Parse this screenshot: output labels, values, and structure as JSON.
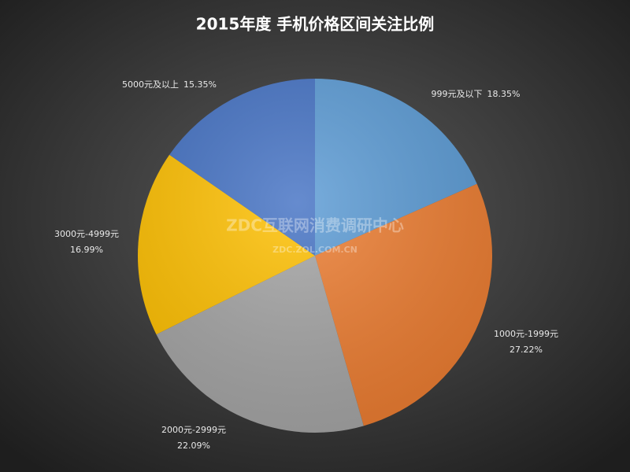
{
  "chart_data": {
    "type": "pie",
    "title": "2015年度 手机价格区间关注比例",
    "categories": [
      "999元及以下",
      "1000元-1999元",
      "2000元-2999元",
      "3000元-4999元",
      "5000元及以上"
    ],
    "values": [
      18.35,
      27.22,
      22.09,
      16.99,
      15.35
    ],
    "value_labels": [
      "18.35%",
      "27.22%",
      "22.09%",
      "16.99%",
      "15.35%"
    ],
    "colors": [
      "#5b9bd5",
      "#ed7d31",
      "#a5a5a5",
      "#ffc000",
      "#4472c4"
    ],
    "watermark": [
      "ZDC互联网消费调研中心",
      "ZDC.ZOL.COM.CN"
    ]
  }
}
